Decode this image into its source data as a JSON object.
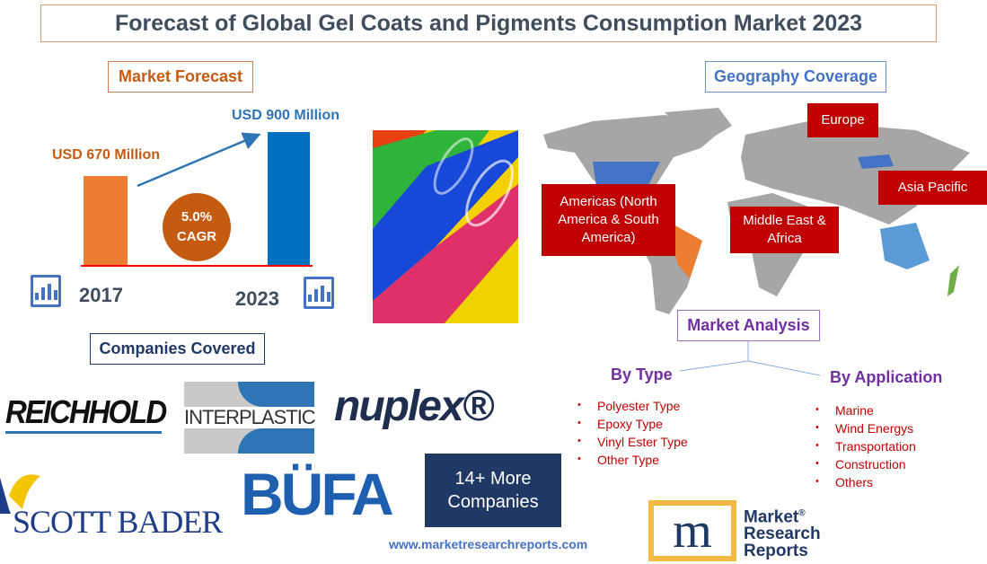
{
  "title": "Forecast of Global Gel Coats and Pigments Consumption Market 2023",
  "forecast": {
    "heading": "Market Forecast",
    "start": {
      "label": "USD 670 Million",
      "year": "2017",
      "value_musd": 670,
      "color": "#ed7d31"
    },
    "end": {
      "label": "USD 900 Million",
      "year": "2023",
      "value_musd": 900,
      "color": "#0070c0"
    },
    "cagr_value": "5.0%",
    "cagr_label": "CAGR"
  },
  "geography": {
    "heading": "Geography Coverage",
    "regions": [
      "Europe",
      "Americas (North America & South America)",
      "Middle East & Africa",
      "Asia Pacific"
    ]
  },
  "analysis": {
    "heading": "Market Analysis",
    "by_type": {
      "heading": "By Type",
      "items": [
        "Polyester Type",
        "Epoxy Type",
        "Vinyl Ester Type",
        "Other Type"
      ]
    },
    "by_application": {
      "heading": "By Application",
      "items": [
        "Marine",
        "Wind Energys",
        "Transportation",
        "Construction",
        "Others"
      ]
    }
  },
  "companies": {
    "heading": "Companies Covered",
    "logos": [
      "REICHHOLD",
      "INTERPLASTIC",
      "nuplex®",
      "SCOTT BADER",
      "BÜFA"
    ],
    "more_line1": "14+ More",
    "more_line2": "Companies"
  },
  "website": "www.marketresearchreports.com",
  "brand": {
    "line1": "Market",
    "line2": "Research",
    "line3": "Reports",
    "mark": "®"
  },
  "colors": {
    "accent_orange": "#c55a11",
    "region_red": "#c00000",
    "navy": "#1f3864",
    "purple": "#7030a0",
    "blue": "#4472c4"
  }
}
